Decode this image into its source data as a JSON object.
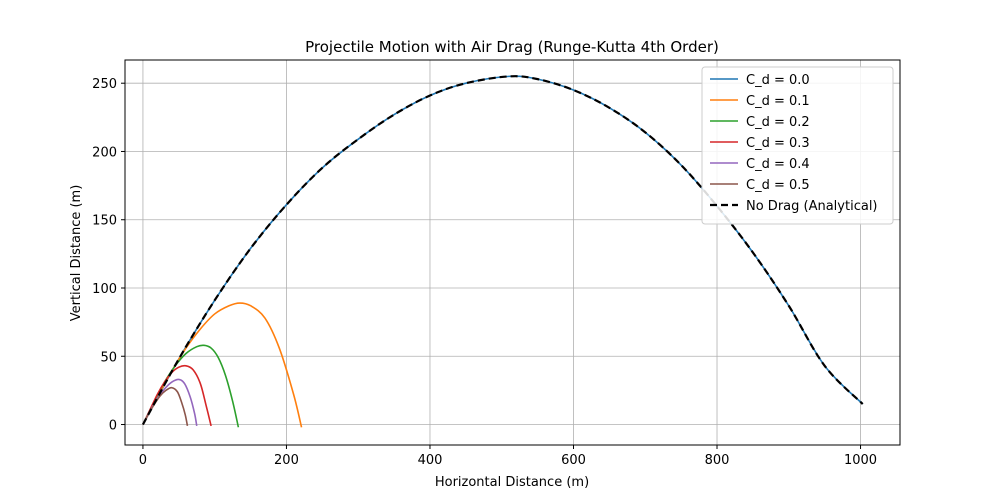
{
  "chart_data": {
    "type": "line",
    "title": "Projectile Motion with Air Drag (Runge-Kutta 4th Order)",
    "xlabel": "Horizontal Distance (m)",
    "ylabel": "Vertical Distance (m)",
    "xlim": [
      -25,
      1055
    ],
    "ylim": [
      -15,
      267
    ],
    "xticks": [
      0,
      200,
      400,
      600,
      800,
      1000
    ],
    "yticks": [
      0,
      50,
      100,
      150,
      200,
      250
    ],
    "grid": true,
    "legend_position": "top-right",
    "colors": {
      "cd0": "#1f77b4",
      "cd1": "#ff7f0e",
      "cd2": "#2ca02c",
      "cd3": "#d62728",
      "cd4": "#9467bd",
      "cd5": "#8c564b",
      "analytical": "#000000"
    },
    "series": [
      {
        "name": "C_d = 0.0",
        "color": "#1f77b4",
        "style": "solid",
        "x": [
          0,
          50,
          100,
          150,
          200,
          250,
          300,
          350,
          400,
          450,
          510,
          550,
          600,
          650,
          700,
          750,
          800,
          850,
          900,
          950,
          1003
        ],
        "y": [
          0,
          48,
          91,
          129,
          161,
          188,
          209,
          227,
          241,
          250,
          255,
          253,
          245,
          232,
          214,
          190,
          160,
          126,
          87,
          43,
          15
        ]
      },
      {
        "name": "C_d = 0.1",
        "color": "#ff7f0e",
        "style": "solid",
        "x": [
          0,
          20,
          40,
          60,
          80,
          100,
          120,
          135,
          150,
          170,
          190,
          210,
          221
        ],
        "y": [
          0,
          20,
          39,
          56,
          70,
          81,
          87,
          89,
          87,
          78,
          56,
          22,
          -2
        ]
      },
      {
        "name": "C_d = 0.2",
        "color": "#2ca02c",
        "style": "solid",
        "x": [
          0,
          15,
          30,
          45,
          60,
          75,
          85,
          95,
          105,
          115,
          125,
          133
        ],
        "y": [
          0,
          16,
          31,
          43,
          52,
          57,
          58,
          56,
          49,
          36,
          17,
          -2
        ]
      },
      {
        "name": "C_d = 0.3",
        "color": "#d62728",
        "style": "solid",
        "x": [
          0,
          10,
          20,
          30,
          40,
          50,
          60,
          70,
          80,
          88,
          95
        ],
        "y": [
          0,
          11,
          22,
          31,
          38,
          42,
          43,
          40,
          30,
          14,
          -1
        ]
      },
      {
        "name": "C_d = 0.4",
        "color": "#9467bd",
        "style": "solid",
        "x": [
          0,
          10,
          20,
          30,
          40,
          50,
          58,
          66,
          72,
          75
        ],
        "y": [
          0,
          10,
          19,
          26,
          31,
          33,
          30,
          20,
          8,
          -1
        ]
      },
      {
        "name": "C_d = 0.5",
        "color": "#8c564b",
        "style": "solid",
        "x": [
          0,
          8,
          16,
          24,
          32,
          40,
          48,
          54,
          59,
          62
        ],
        "y": [
          0,
          8,
          15,
          21,
          25,
          27,
          24,
          16,
          7,
          -1
        ]
      },
      {
        "name": "No Drag (Analytical)",
        "color": "#000000",
        "style": "dashed",
        "x": [
          0,
          50,
          100,
          150,
          200,
          250,
          300,
          350,
          400,
          450,
          510,
          550,
          600,
          650,
          700,
          750,
          800,
          850,
          900,
          950,
          1003
        ],
        "y": [
          0,
          48,
          91,
          129,
          161,
          188,
          209,
          227,
          241,
          250,
          255,
          253,
          245,
          232,
          214,
          190,
          160,
          126,
          87,
          43,
          15
        ]
      }
    ]
  }
}
